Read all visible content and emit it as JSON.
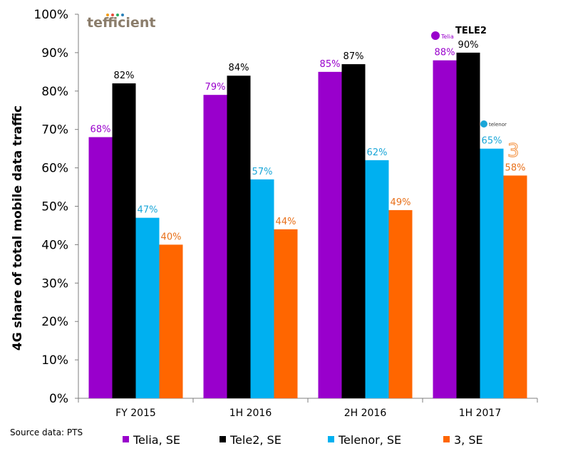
{
  "chart_data": {
    "type": "bar",
    "ylabel": "4G share of total mobile data traffic",
    "ylim": [
      0,
      100
    ],
    "yticks": [
      "0%",
      "10%",
      "20%",
      "30%",
      "40%",
      "50%",
      "60%",
      "70%",
      "80%",
      "90%",
      "100%"
    ],
    "categories": [
      "FY 2015",
      "1H 2016",
      "2H 2016",
      "1H 2017"
    ],
    "series": [
      {
        "name": "Telia, SE",
        "color": "#9900cc",
        "label_color": "#9900cc",
        "values": [
          68,
          79,
          85,
          88
        ],
        "labels": [
          "68%",
          "79%",
          "85%",
          "88%"
        ]
      },
      {
        "name": "Tele2, SE",
        "color": "#000000",
        "label_color": "#000000",
        "values": [
          82,
          84,
          87,
          90
        ],
        "labels": [
          "82%",
          "84%",
          "87%",
          "90%"
        ]
      },
      {
        "name": "Telenor, SE",
        "color": "#00b0f0",
        "label_color": "#1aa6d8",
        "values": [
          47,
          57,
          62,
          65
        ],
        "labels": [
          "47%",
          "57%",
          "62%",
          "65%"
        ]
      },
      {
        "name": "3, SE",
        "color": "#ff6600",
        "label_color": "#e8701a",
        "values": [
          40,
          44,
          49,
          58
        ],
        "labels": [
          "40%",
          "44%",
          "49%",
          "58%"
        ]
      }
    ],
    "legend_position": "bottom",
    "grid": false
  },
  "source_note": "Source data: PTS",
  "brand_logo_text": "tefficient",
  "operator_logos": {
    "telia": "Telia",
    "tele2": "TELE2",
    "telenor": "telenor",
    "three": "3"
  }
}
